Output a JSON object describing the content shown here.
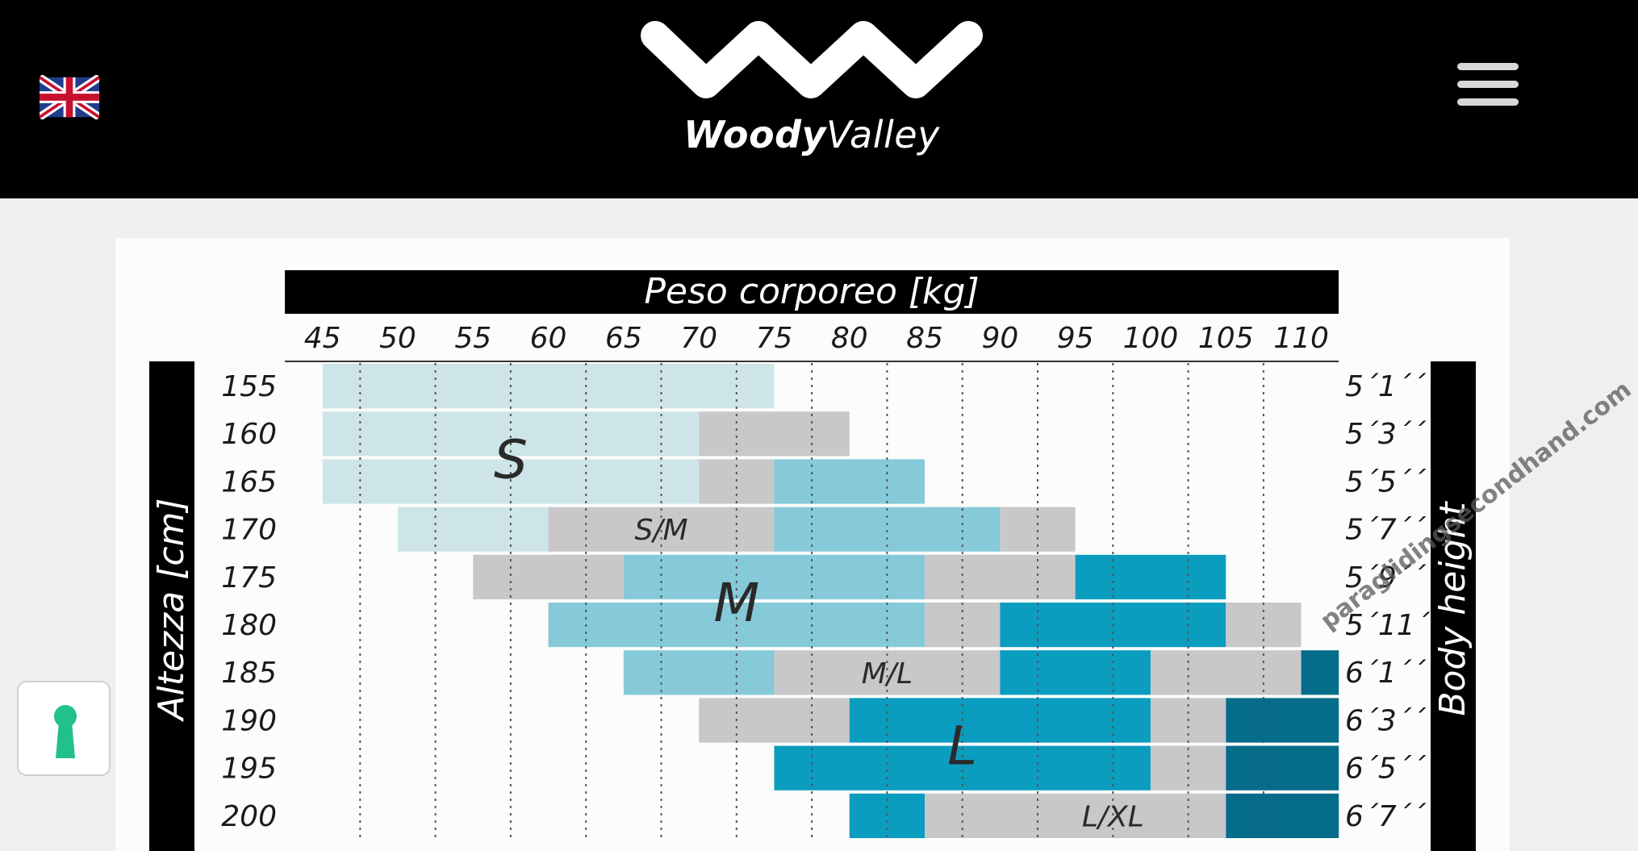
{
  "header": {
    "brand_bold": "Woody",
    "brand_light": "Valley",
    "flag_icon": "uk-flag-icon",
    "menu_icon": "hamburger-menu-icon"
  },
  "chart_data": {
    "type": "heatmap",
    "title": "Peso corporeo [kg]",
    "ylabel": "Altezza [cm]",
    "ylabel_right": "Body height",
    "x": [
      45,
      50,
      55,
      60,
      65,
      70,
      75,
      80,
      85,
      90,
      95,
      100,
      105,
      110
    ],
    "y": [
      155,
      160,
      165,
      170,
      175,
      180,
      185,
      190,
      195,
      200
    ],
    "y_imperial": [
      "5´1´´",
      "5´3´´",
      "5´5´´",
      "5´7´´",
      "5´9´´",
      "5´11´´",
      "6´1´´",
      "6´3´´",
      "6´5´´",
      "6´7´´"
    ],
    "sizes": [
      "S",
      "S/M",
      "M",
      "M/L",
      "L",
      "L/XL",
      "XL"
    ],
    "colors": {
      "S": "#cde5e8",
      "S/M": "#c8c8ca",
      "M": "#86cad9",
      "M/L": "#c8c8ca",
      "L": "#0a9dbf",
      "L/XL": "#c8c8ca",
      "XL": "#056c89"
    },
    "rows": [
      {
        "height": 155,
        "cells": [
          {
            "from": 45,
            "to": 75,
            "size": "S"
          }
        ]
      },
      {
        "height": 160,
        "cells": [
          {
            "from": 45,
            "to": 70,
            "size": "S"
          },
          {
            "from": 70,
            "to": 80,
            "size": "S/M"
          }
        ]
      },
      {
        "height": 165,
        "cells": [
          {
            "from": 45,
            "to": 70,
            "size": "S"
          },
          {
            "from": 70,
            "to": 75,
            "size": "S/M"
          },
          {
            "from": 75,
            "to": 85,
            "size": "M"
          }
        ]
      },
      {
        "height": 170,
        "cells": [
          {
            "from": 50,
            "to": 60,
            "size": "S"
          },
          {
            "from": 60,
            "to": 75,
            "size": "S/M"
          },
          {
            "from": 75,
            "to": 90,
            "size": "M"
          },
          {
            "from": 90,
            "to": 95,
            "size": "M/L"
          }
        ]
      },
      {
        "height": 175,
        "cells": [
          {
            "from": 55,
            "to": 65,
            "size": "S/M"
          },
          {
            "from": 65,
            "to": 85,
            "size": "M"
          },
          {
            "from": 85,
            "to": 95,
            "size": "M/L"
          },
          {
            "from": 95,
            "to": 105,
            "size": "L"
          }
        ]
      },
      {
        "height": 180,
        "cells": [
          {
            "from": 60,
            "to": 85,
            "size": "M"
          },
          {
            "from": 85,
            "to": 90,
            "size": "M/L"
          },
          {
            "from": 90,
            "to": 105,
            "size": "L"
          },
          {
            "from": 105,
            "to": 110,
            "size": "L/XL"
          }
        ]
      },
      {
        "height": 185,
        "cells": [
          {
            "from": 65,
            "to": 75,
            "size": "M"
          },
          {
            "from": 75,
            "to": 90,
            "size": "M/L"
          },
          {
            "from": 90,
            "to": 100,
            "size": "L"
          },
          {
            "from": 100,
            "to": 110,
            "size": "L/XL"
          },
          {
            "from": 110,
            "to": 115,
            "size": "XL"
          }
        ]
      },
      {
        "height": 190,
        "cells": [
          {
            "from": 70,
            "to": 80,
            "size": "M/L"
          },
          {
            "from": 80,
            "to": 100,
            "size": "L"
          },
          {
            "from": 100,
            "to": 105,
            "size": "L/XL"
          },
          {
            "from": 105,
            "to": 115,
            "size": "XL"
          }
        ]
      },
      {
        "height": 195,
        "cells": [
          {
            "from": 75,
            "to": 100,
            "size": "L"
          },
          {
            "from": 100,
            "to": 105,
            "size": "L/XL"
          },
          {
            "from": 105,
            "to": 115,
            "size": "XL"
          }
        ]
      },
      {
        "height": 200,
        "cells": [
          {
            "from": 80,
            "to": 85,
            "size": "L"
          },
          {
            "from": 85,
            "to": 105,
            "size": "L/XL"
          },
          {
            "from": 105,
            "to": 115,
            "size": "XL"
          }
        ]
      }
    ],
    "labels": [
      {
        "text": "S",
        "x": 57.5,
        "y": 162.5,
        "big": true
      },
      {
        "text": "S/M",
        "x": 67.5,
        "y": 170,
        "big": false
      },
      {
        "text": "M",
        "x": 72.5,
        "y": 177.5,
        "big": true
      },
      {
        "text": "M/L",
        "x": 82.5,
        "y": 185,
        "big": false
      },
      {
        "text": "L",
        "x": 87.5,
        "y": 192.5,
        "big": true
      },
      {
        "text": "L/XL",
        "x": 97.5,
        "y": 200,
        "big": false
      }
    ]
  },
  "watermark": "paraglidingsecondhand.com",
  "lock_button": {
    "icon": "keyhole-icon"
  }
}
